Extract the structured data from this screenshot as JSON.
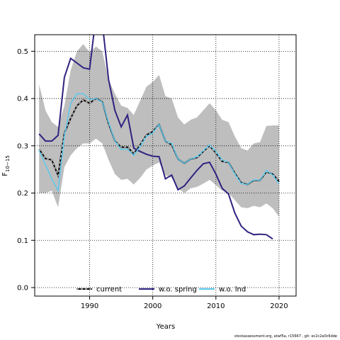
{
  "chart_data": {
    "type": "line",
    "xlabel": "Years",
    "ylabel": "F",
    "ylabel_sub": "10−15",
    "xlim": [
      1981.3,
      2022.7
    ],
    "ylim": [
      -0.018,
      0.535
    ],
    "xticks": [
      1990,
      2000,
      2010,
      2020
    ],
    "yticks": [
      0.0,
      0.1,
      0.2,
      0.3,
      0.4,
      0.5
    ],
    "xtick_labels": [
      "1990",
      "2000",
      "2010",
      "2020"
    ],
    "ytick_labels": [
      "0.0",
      "0.1",
      "0.2",
      "0.3",
      "0.4",
      "0.5"
    ],
    "grid": true,
    "legend_position": "bottom-center",
    "band": {
      "color": "#bebebe",
      "x": [
        1982,
        1983,
        1984,
        1985,
        1986,
        1987,
        1988,
        1989,
        1990,
        1991,
        1992,
        1993,
        1994,
        1995,
        1996,
        1997,
        1998,
        1999,
        2000,
        2001,
        2002,
        2003,
        2004,
        2005,
        2006,
        2007,
        2008,
        2009,
        2010,
        2011,
        2012,
        2013,
        2014,
        2015,
        2016,
        2017,
        2018,
        2019,
        2020
      ],
      "upper": [
        0.43,
        0.375,
        0.35,
        0.34,
        0.385,
        0.46,
        0.5,
        0.515,
        0.498,
        0.51,
        0.5,
        0.44,
        0.41,
        0.385,
        0.38,
        0.365,
        0.395,
        0.425,
        0.435,
        0.45,
        0.405,
        0.4,
        0.36,
        0.345,
        0.355,
        0.36,
        0.375,
        0.39,
        0.375,
        0.355,
        0.35,
        0.32,
        0.295,
        0.29,
        0.305,
        0.308,
        0.342,
        0.343,
        0.343
      ],
      "lower": [
        0.2,
        0.2,
        0.205,
        0.17,
        0.255,
        0.28,
        0.295,
        0.305,
        0.305,
        0.315,
        0.305,
        0.27,
        0.24,
        0.228,
        0.23,
        0.218,
        0.232,
        0.25,
        0.258,
        0.265,
        0.238,
        0.232,
        0.21,
        0.2,
        0.21,
        0.213,
        0.22,
        0.228,
        0.217,
        0.205,
        0.2,
        0.185,
        0.17,
        0.168,
        0.173,
        0.17,
        0.178,
        0.168,
        0.15
      ]
    },
    "series": [
      {
        "name": "current",
        "color": "#000000",
        "dashed": true,
        "x": [
          1982,
          1983,
          1984,
          1985,
          1986,
          1987,
          1988,
          1989,
          1990,
          1991,
          1992,
          1993,
          1994,
          1995,
          1996,
          1997,
          1998,
          1999,
          2000,
          2001,
          2002,
          2003,
          2004,
          2005,
          2006,
          2007,
          2008,
          2009,
          2010,
          2011,
          2012,
          2013,
          2014,
          2015,
          2016,
          2017,
          2018,
          2019,
          2020
        ],
        "values": [
          0.293,
          0.273,
          0.27,
          0.237,
          0.327,
          0.358,
          0.385,
          0.397,
          0.39,
          0.4,
          0.393,
          0.347,
          0.31,
          0.297,
          0.297,
          0.283,
          0.302,
          0.323,
          0.33,
          0.345,
          0.31,
          0.302,
          0.272,
          0.263,
          0.272,
          0.275,
          0.288,
          0.3,
          0.285,
          0.267,
          0.265,
          0.242,
          0.222,
          0.218,
          0.227,
          0.227,
          0.245,
          0.24,
          0.225
        ]
      },
      {
        "name": "w.o. spring",
        "color": "#2e2380",
        "dashed": false,
        "x": [
          1982,
          1983,
          1984,
          1985,
          1986,
          1987,
          1988,
          1989,
          1990,
          1991,
          1992,
          1993,
          1994,
          1995,
          1996,
          1997,
          1998,
          1999,
          2000,
          2001,
          2002,
          2003,
          2004,
          2005,
          2006,
          2007,
          2008,
          2009,
          2010,
          2011,
          2012,
          2013,
          2014,
          2015,
          2016,
          2017,
          2018,
          2019
        ],
        "values": [
          0.325,
          0.31,
          0.31,
          0.322,
          0.445,
          0.485,
          0.475,
          0.465,
          0.462,
          0.575,
          0.56,
          0.44,
          0.375,
          0.34,
          0.365,
          0.295,
          0.288,
          0.282,
          0.278,
          0.277,
          0.23,
          0.238,
          0.207,
          0.215,
          0.232,
          0.248,
          0.262,
          0.265,
          0.24,
          0.21,
          0.198,
          0.158,
          0.13,
          0.118,
          0.112,
          0.113,
          0.112,
          0.103
        ]
      },
      {
        "name": "w.o. lnd",
        "color": "#5bc8ec",
        "dashed": false,
        "x": [
          1982,
          1983,
          1984,
          1985,
          1986,
          1987,
          1988,
          1989,
          1990,
          1991,
          1992,
          1993,
          1994,
          1995,
          1996,
          1997,
          1998,
          1999,
          2000,
          2001,
          2002,
          2003,
          2004,
          2005,
          2006,
          2007,
          2008,
          2009,
          2010,
          2011,
          2012,
          2013,
          2014,
          2015,
          2016,
          2017,
          2018,
          2019,
          2020
        ],
        "values": [
          0.29,
          0.26,
          0.23,
          0.205,
          0.32,
          0.39,
          0.41,
          0.41,
          0.398,
          0.4,
          0.392,
          0.35,
          0.31,
          0.292,
          0.293,
          0.28,
          0.298,
          0.32,
          0.327,
          0.345,
          0.31,
          0.305,
          0.272,
          0.263,
          0.272,
          0.277,
          0.29,
          0.302,
          0.288,
          0.27,
          0.265,
          0.24,
          0.22,
          0.218,
          0.228,
          0.227,
          0.248,
          0.238,
          0.22
        ]
      }
    ]
  },
  "credit": "stockassessment.org, atwf5a, r15667 , git: ec2c2a0c6dde"
}
